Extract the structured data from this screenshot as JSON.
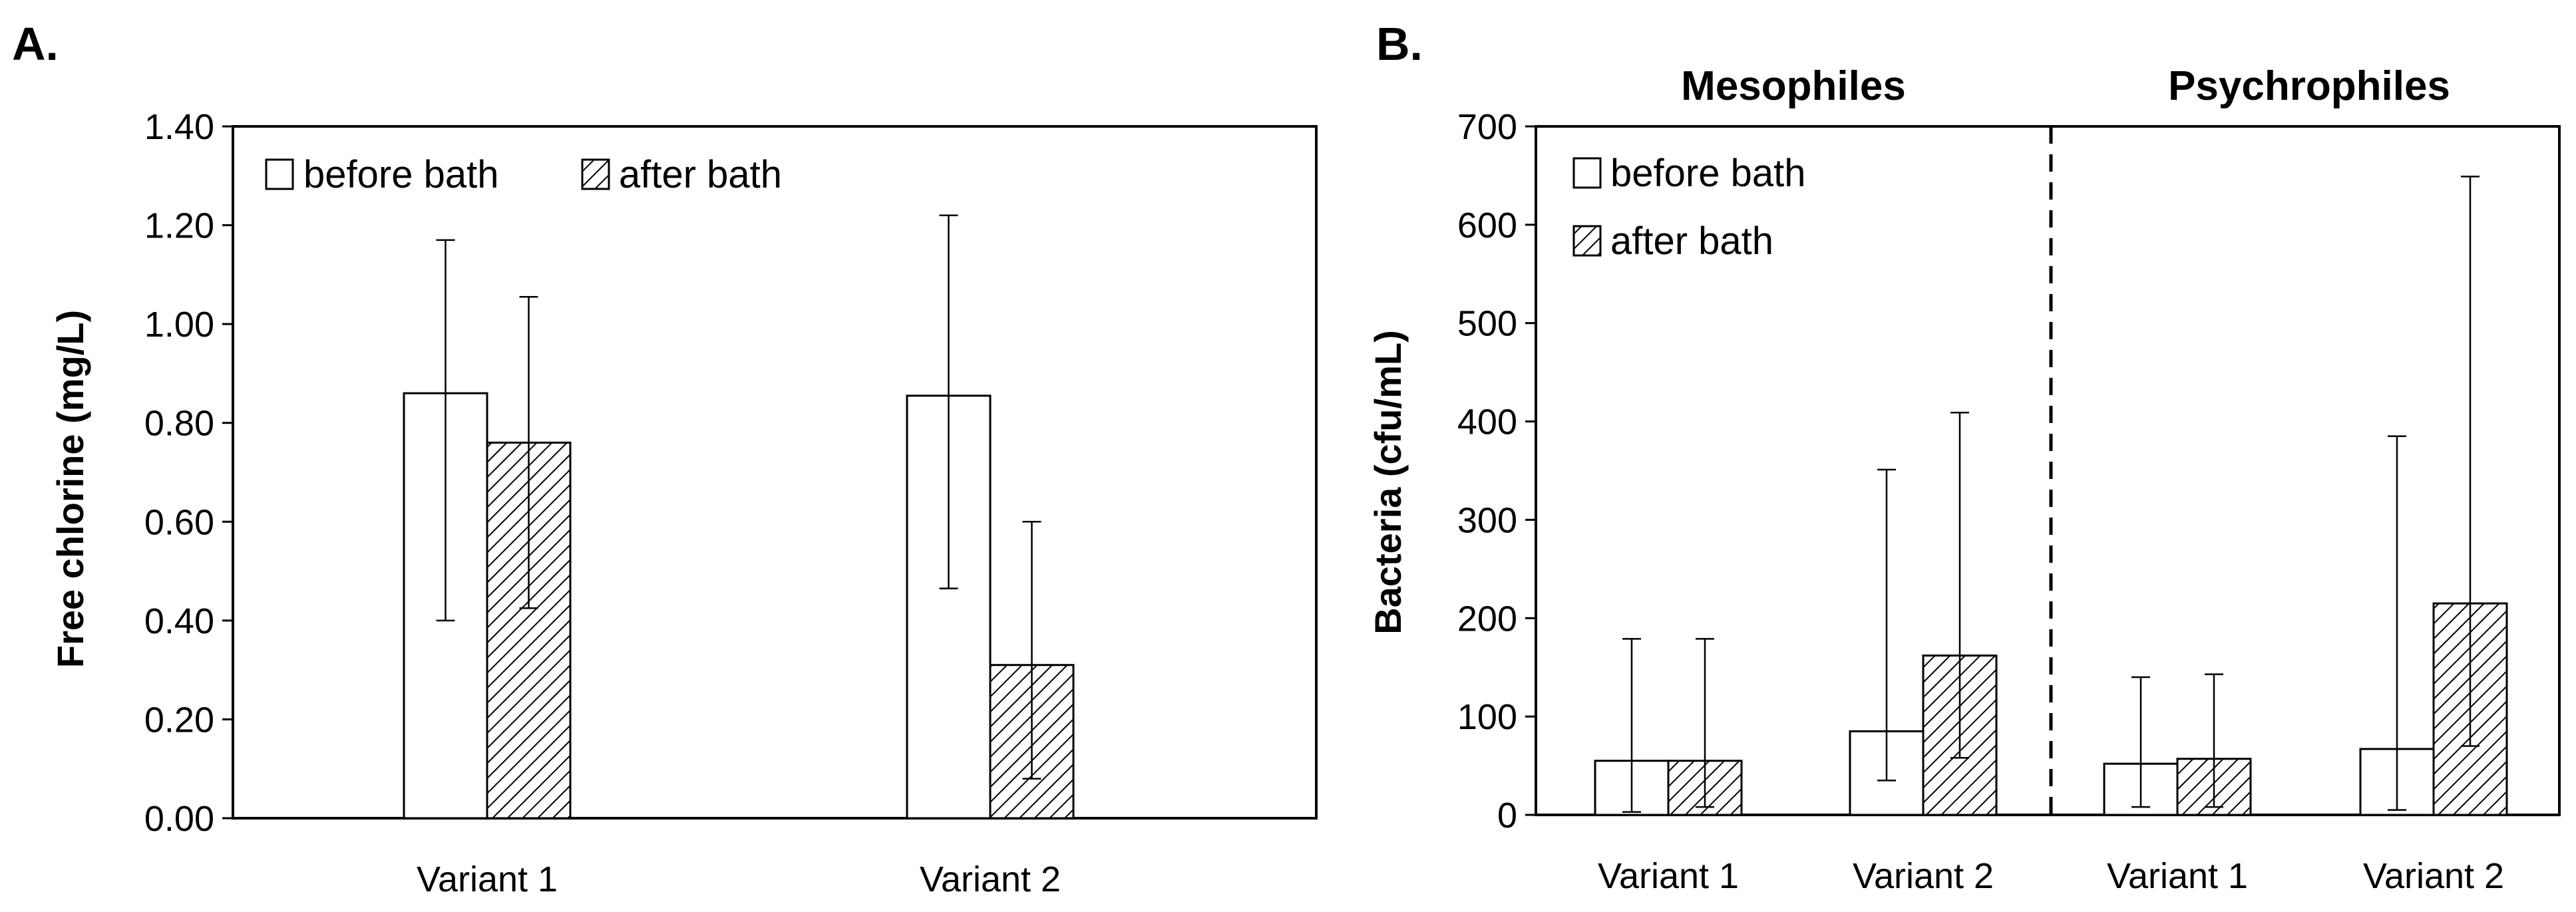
{
  "chart_data": [
    {
      "type": "bar",
      "panel": "A.",
      "title": "",
      "xlabel": "",
      "ylabel": "Free chlorine (mg/L)",
      "ylim": [
        0,
        1.4
      ],
      "yticks": [
        "0.00",
        "0.20",
        "0.40",
        "0.60",
        "0.80",
        "1.00",
        "1.20",
        "1.40"
      ],
      "categories": [
        "Variant 1",
        "Variant 2"
      ],
      "series": [
        {
          "name": "before bath",
          "pattern": "open",
          "values": [
            0.86,
            0.855
          ],
          "err_low": [
            0.4,
            0.465
          ],
          "err_high": [
            1.17,
            1.22
          ]
        },
        {
          "name": "after bath",
          "pattern": "hatched",
          "values": [
            0.76,
            0.31
          ],
          "err_low": [
            0.425,
            0.08
          ],
          "err_high": [
            1.055,
            0.6
          ]
        }
      ],
      "legend": "top-left, horizontal"
    },
    {
      "type": "bar",
      "panel": "B.",
      "title": "",
      "xlabel": "",
      "ylabel": "Bacteria (cfu/mL)",
      "ylim": [
        0,
        700
      ],
      "yticks": [
        "0",
        "100",
        "200",
        "300",
        "400",
        "500",
        "600",
        "700"
      ],
      "groups": [
        "Mesophiles",
        "Psychrophiles"
      ],
      "categories": [
        "Variant 1",
        "Variant 2",
        "Variant 1",
        "Variant 2"
      ],
      "series": [
        {
          "name": "before bath",
          "pattern": "open",
          "values": [
            55,
            85,
            52,
            67
          ],
          "err_low": [
            3,
            35,
            8,
            5
          ],
          "err_high": [
            179,
            351,
            140,
            385
          ]
        },
        {
          "name": "after bath",
          "pattern": "hatched",
          "values": [
            55,
            162,
            57,
            215
          ],
          "err_low": [
            8,
            58,
            8,
            70
          ],
          "err_high": [
            179,
            409,
            143,
            649
          ]
        }
      ],
      "divider": "dashed vertical line between Mesophiles and Psychrophiles",
      "legend": "top-left, vertical"
    }
  ]
}
